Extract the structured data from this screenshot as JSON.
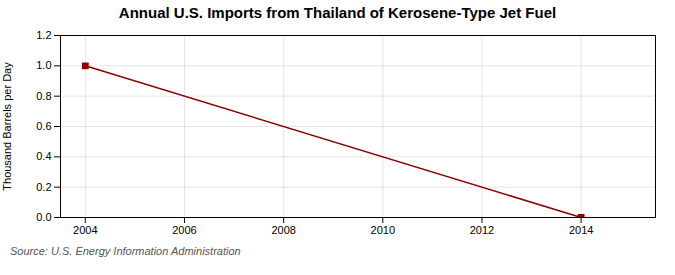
{
  "chart_data": {
    "type": "line",
    "title": "Annual U.S. Imports from Thailand of Kerosene-Type Jet Fuel",
    "ylabel": "Thousand Barrels per Day",
    "caption": "Source: U.S. Energy Information Administration",
    "x": [
      2004,
      2014
    ],
    "values": [
      1.0,
      0.0
    ],
    "color": "#8B0000",
    "marker": "square",
    "xlim": [
      2003.5,
      2015.5
    ],
    "xticks": [
      2004,
      2006,
      2008,
      2010,
      2012,
      2014
    ],
    "ylim": [
      0.0,
      1.2
    ],
    "yticks": [
      {
        "value": 0.0,
        "label": "0.0"
      },
      0.2,
      0.4,
      0.6,
      0.8,
      {
        "value": 1.0,
        "label": "1.0"
      },
      1.2
    ],
    "grid": true
  }
}
